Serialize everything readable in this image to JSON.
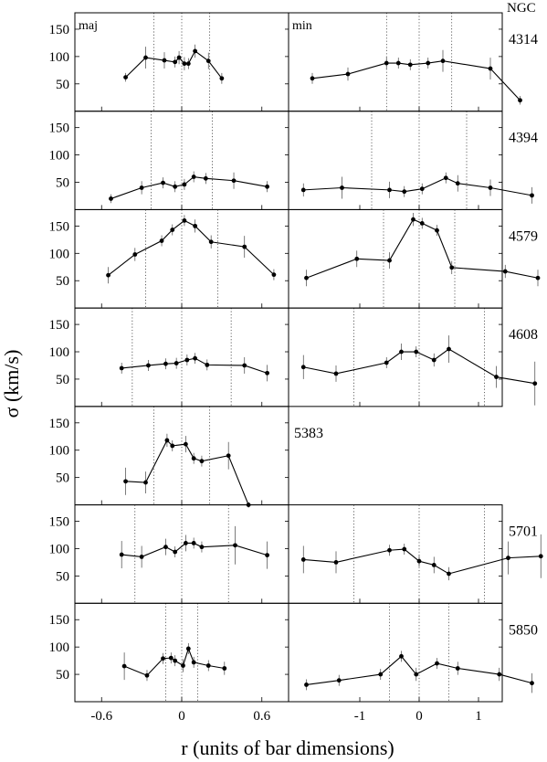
{
  "chart_data": {
    "type": "scatter",
    "ylabel": "σ (km/s)",
    "xlabel": "r (units of bar dimensions)",
    "y_ticks": [
      "150",
      "100",
      "50"
    ],
    "ylim": [
      0,
      180
    ],
    "left_xlim": [
      -0.8,
      0.8
    ],
    "right_xlim": [
      -2.2,
      1.4
    ],
    "left_x_ticks": [
      {
        "value": -0.6,
        "label": "-0.6"
      },
      {
        "value": 0,
        "label": "0"
      },
      {
        "value": 0.6,
        "label": "0.6"
      }
    ],
    "right_x_ticks": [
      {
        "value": -1,
        "label": "-1"
      },
      {
        "value": 0,
        "label": "0"
      },
      {
        "value": 1,
        "label": "1"
      }
    ],
    "column_header": "NGC",
    "left_axis_label": "maj",
    "right_axis_label": "min",
    "galaxies": [
      {
        "ngc": "4314",
        "maj": {
          "points": [
            [
              -0.42,
              62,
              8
            ],
            [
              -0.27,
              98,
              20
            ],
            [
              -0.13,
              93,
              15
            ],
            [
              -0.05,
              90,
              10
            ],
            [
              -0.02,
              98,
              12
            ],
            [
              0.02,
              87,
              12
            ],
            [
              0.05,
              87,
              10
            ],
            [
              0.1,
              110,
              12
            ],
            [
              0.2,
              92,
              15
            ],
            [
              0.3,
              60,
              10
            ]
          ],
          "bar_edges": [
            -0.21,
            0.21
          ]
        },
        "min": {
          "points": [
            [
              -1.8,
              60,
              10
            ],
            [
              -1.2,
              68,
              12
            ],
            [
              -0.55,
              88,
              12
            ],
            [
              -0.35,
              88,
              10
            ],
            [
              -0.15,
              85,
              10
            ],
            [
              0.15,
              88,
              10
            ],
            [
              0.4,
              92,
              20
            ],
            [
              1.2,
              78,
              20
            ],
            [
              1.7,
              20,
              8
            ]
          ],
          "bar_edges": [
            -0.55,
            0.55
          ]
        }
      },
      {
        "ngc": "4394",
        "maj": {
          "points": [
            [
              -0.53,
              20,
              8
            ],
            [
              -0.3,
              40,
              12
            ],
            [
              -0.14,
              49,
              10
            ],
            [
              -0.05,
              42,
              10
            ],
            [
              0.02,
              46,
              10
            ],
            [
              0.09,
              60,
              10
            ],
            [
              0.18,
              57,
              10
            ],
            [
              0.39,
              53,
              15
            ],
            [
              0.64,
              42,
              10
            ]
          ],
          "bar_edges": [
            -0.23,
            0.23
          ]
        },
        "min": {
          "points": [
            [
              -1.95,
              36,
              12
            ],
            [
              -1.3,
              40,
              20
            ],
            [
              -0.5,
              36,
              15
            ],
            [
              -0.25,
              33,
              10
            ],
            [
              0.05,
              38,
              10
            ],
            [
              0.45,
              58,
              10
            ],
            [
              0.65,
              48,
              15
            ],
            [
              1.2,
              40,
              15
            ],
            [
              1.9,
              26,
              15
            ]
          ],
          "bar_edges": [
            -0.8,
            0.8
          ]
        }
      },
      {
        "ngc": "4579",
        "maj": {
          "points": [
            [
              -0.55,
              60,
              15
            ],
            [
              -0.35,
              98,
              12
            ],
            [
              -0.15,
              123,
              10
            ],
            [
              -0.07,
              143,
              10
            ],
            [
              0.02,
              160,
              10
            ],
            [
              0.1,
              150,
              12
            ],
            [
              0.22,
              121,
              12
            ],
            [
              0.47,
              112,
              20
            ],
            [
              0.69,
              61,
              10
            ]
          ],
          "bar_edges": [
            -0.27,
            0.27
          ]
        },
        "min": {
          "points": [
            [
              -1.9,
              55,
              15
            ],
            [
              -1.05,
              90,
              15
            ],
            [
              -0.5,
              87,
              15
            ],
            [
              -0.1,
              162,
              12
            ],
            [
              0.05,
              155,
              10
            ],
            [
              0.3,
              142,
              10
            ],
            [
              0.55,
              74,
              12
            ],
            [
              1.45,
              67,
              12
            ],
            [
              2.0,
              55,
              15
            ]
          ],
          "bar_edges": [
            -0.6,
            0.6
          ]
        }
      },
      {
        "ngc": "4608",
        "maj": {
          "points": [
            [
              -0.45,
              70,
              10
            ],
            [
              -0.25,
              75,
              10
            ],
            [
              -0.12,
              78,
              10
            ],
            [
              -0.04,
              79,
              10
            ],
            [
              0.04,
              85,
              10
            ],
            [
              0.1,
              88,
              10
            ],
            [
              0.19,
              76,
              10
            ],
            [
              0.47,
              75,
              15
            ],
            [
              0.64,
              61,
              15
            ]
          ],
          "bar_edges": [
            -0.37,
            0.37
          ]
        },
        "min": {
          "points": [
            [
              -1.95,
              72,
              22
            ],
            [
              -1.4,
              60,
              15
            ],
            [
              -0.55,
              80,
              10
            ],
            [
              -0.3,
              100,
              15
            ],
            [
              -0.05,
              100,
              10
            ],
            [
              0.25,
              85,
              12
            ],
            [
              0.5,
              105,
              25
            ],
            [
              1.3,
              54,
              20
            ],
            [
              1.95,
              42,
              40
            ]
          ],
          "bar_edges": [
            -1.1,
            1.1
          ]
        }
      },
      {
        "ngc": "5383",
        "maj": {
          "points": [
            [
              -0.42,
              43,
              25
            ],
            [
              -0.27,
              41,
              20
            ],
            [
              -0.11,
              118,
              12
            ],
            [
              -0.07,
              108,
              10
            ],
            [
              0.03,
              111,
              15
            ],
            [
              0.09,
              85,
              10
            ],
            [
              0.15,
              80,
              10
            ],
            [
              0.35,
              90,
              25
            ],
            [
              0.5,
              0,
              5
            ]
          ],
          "bar_edges": [
            -0.21,
            0.21
          ]
        }
      },
      {
        "ngc": "5701",
        "maj": {
          "points": [
            [
              -0.45,
              89,
              25
            ],
            [
              -0.3,
              85,
              20
            ],
            [
              -0.12,
              103,
              15
            ],
            [
              -0.05,
              94,
              10
            ],
            [
              0.03,
              110,
              15
            ],
            [
              0.09,
              110,
              10
            ],
            [
              0.15,
              103,
              10
            ],
            [
              0.4,
              106,
              35
            ],
            [
              0.64,
              88,
              25
            ]
          ],
          "bar_edges": [
            -0.35,
            0.35
          ]
        },
        "min": {
          "points": [
            [
              -1.95,
              80,
              25
            ],
            [
              -1.4,
              75,
              20
            ],
            [
              -0.5,
              97,
              10
            ],
            [
              -0.25,
              99,
              10
            ],
            [
              0,
              77,
              10
            ],
            [
              0.25,
              70,
              15
            ],
            [
              0.5,
              54,
              12
            ],
            [
              1.5,
              83,
              30
            ],
            [
              2.05,
              86,
              40
            ]
          ],
          "bar_edges": [
            -1.1,
            1.1
          ]
        }
      },
      {
        "ngc": "5850",
        "maj": {
          "points": [
            [
              -0.43,
              65,
              25
            ],
            [
              -0.26,
              48,
              10
            ],
            [
              -0.14,
              79,
              10
            ],
            [
              -0.08,
              80,
              10
            ],
            [
              -0.05,
              75,
              10
            ],
            [
              0.01,
              66,
              12
            ],
            [
              0.05,
              97,
              10
            ],
            [
              0.09,
              72,
              10
            ],
            [
              0.2,
              66,
              10
            ],
            [
              0.32,
              61,
              12
            ]
          ],
          "bar_edges": [
            -0.12,
            0.12
          ]
        },
        "min": {
          "points": [
            [
              -1.9,
              31,
              10
            ],
            [
              -1.35,
              39,
              10
            ],
            [
              -0.65,
              50,
              10
            ],
            [
              -0.3,
              83,
              10
            ],
            [
              -0.05,
              50,
              12
            ],
            [
              0.3,
              70,
              10
            ],
            [
              0.65,
              61,
              12
            ],
            [
              1.35,
              50,
              12
            ],
            [
              1.9,
              34,
              18
            ]
          ],
          "bar_edges": [
            -0.5,
            0.5
          ]
        }
      }
    ]
  }
}
